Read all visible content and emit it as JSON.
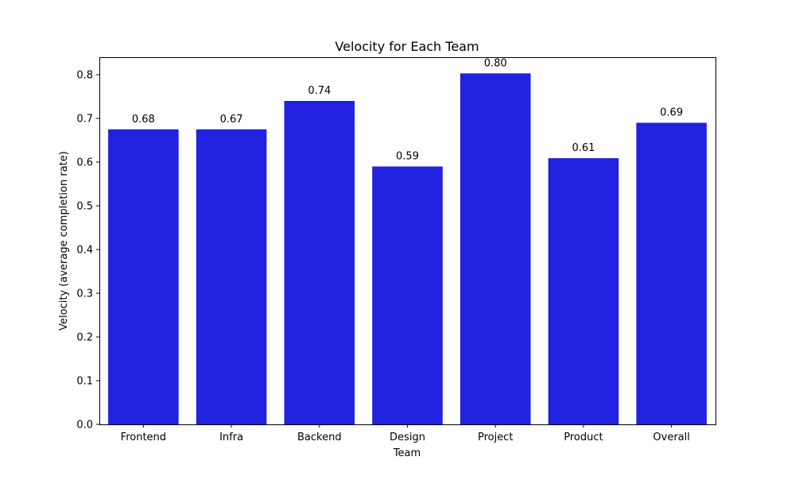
{
  "chart_data": {
    "type": "bar",
    "title": "Velocity for Each Team",
    "xlabel": "Team",
    "ylabel": "Velocity (average completion rate)",
    "categories": [
      "Frontend",
      "Infra",
      "Backend",
      "Design",
      "Project",
      "Product",
      "Overall"
    ],
    "values": [
      0.675,
      0.675,
      0.74,
      0.59,
      0.803,
      0.609,
      0.69
    ],
    "data_labels": [
      "0.68",
      "0.67",
      "0.74",
      "0.59",
      "0.80",
      "0.61",
      "0.69"
    ],
    "ylim": [
      0,
      0.84
    ],
    "yticks": [
      0.0,
      0.1,
      0.2,
      0.3,
      0.4,
      0.5,
      0.6,
      0.7,
      0.8
    ],
    "ytick_labels": [
      "0.0",
      "0.1",
      "0.2",
      "0.3",
      "0.4",
      "0.5",
      "0.6",
      "0.7",
      "0.8"
    ],
    "grid": false,
    "bar_color": "#2121df"
  }
}
